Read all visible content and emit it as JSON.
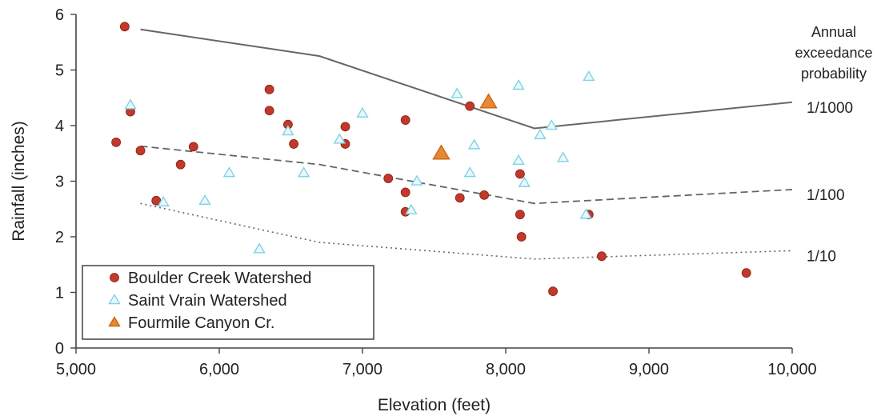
{
  "chart_data": {
    "type": "scatter",
    "title": "",
    "xlabel": "Elevation (feet)",
    "ylabel": "Rainfall (inches)",
    "xlim": [
      5000,
      10000
    ],
    "ylim": [
      0,
      6
    ],
    "x_ticks": [
      5000,
      6000,
      7000,
      8000,
      9000,
      10000
    ],
    "x_tick_labels": [
      "5,000",
      "6,000",
      "7,000",
      "8,000",
      "9,000",
      "10,000"
    ],
    "y_ticks": [
      0,
      1,
      2,
      3,
      4,
      5,
      6
    ],
    "y_tick_labels": [
      "0",
      "1",
      "2",
      "3",
      "4",
      "5",
      "6"
    ],
    "grid": false,
    "legend_placement": "bottom-left",
    "lines_title": [
      "Annual",
      "exceedance",
      "probability"
    ],
    "series": [
      {
        "name": "Boulder Creek Watershed",
        "marker": "circle",
        "color": "#c0392b",
        "points": [
          [
            5340,
            5.78
          ],
          [
            5280,
            3.7
          ],
          [
            5380,
            4.25
          ],
          [
            5450,
            3.55
          ],
          [
            5560,
            2.65
          ],
          [
            5730,
            3.3
          ],
          [
            5820,
            3.62
          ],
          [
            6350,
            4.65
          ],
          [
            6350,
            4.27
          ],
          [
            6480,
            4.02
          ],
          [
            6520,
            3.67
          ],
          [
            6880,
            3.98
          ],
          [
            6880,
            3.67
          ],
          [
            7180,
            3.05
          ],
          [
            7300,
            4.1
          ],
          [
            7300,
            2.8
          ],
          [
            7300,
            2.45
          ],
          [
            7680,
            2.7
          ],
          [
            7750,
            4.35
          ],
          [
            7850,
            2.75
          ],
          [
            8100,
            3.13
          ],
          [
            8100,
            2.4
          ],
          [
            8110,
            2.0
          ],
          [
            8330,
            1.02
          ],
          [
            8580,
            2.4
          ],
          [
            8670,
            1.65
          ],
          [
            9680,
            1.35
          ]
        ]
      },
      {
        "name": "Saint Vrain Watershed",
        "marker": "triangle",
        "color": "#7fd3e6",
        "points": [
          [
            5380,
            4.37
          ],
          [
            5610,
            2.62
          ],
          [
            5900,
            2.65
          ],
          [
            6070,
            3.15
          ],
          [
            6280,
            1.78
          ],
          [
            6480,
            3.9
          ],
          [
            6590,
            3.15
          ],
          [
            6840,
            3.75
          ],
          [
            7000,
            4.22
          ],
          [
            7340,
            2.48
          ],
          [
            7380,
            3.0
          ],
          [
            7660,
            4.57
          ],
          [
            7750,
            3.15
          ],
          [
            7780,
            3.65
          ],
          [
            8090,
            4.72
          ],
          [
            8090,
            3.37
          ],
          [
            8130,
            2.97
          ],
          [
            8240,
            3.83
          ],
          [
            8320,
            4.0
          ],
          [
            8400,
            3.42
          ],
          [
            8560,
            2.4
          ],
          [
            8580,
            4.88
          ]
        ]
      },
      {
        "name": "Fourmile Canyon Cr.",
        "marker": "triangle",
        "color": "#e8892f",
        "points": [
          [
            7550,
            3.5
          ],
          [
            7880,
            4.42
          ]
        ]
      }
    ],
    "lines": [
      {
        "label": "1/1000",
        "style": "solid",
        "points": [
          [
            5450,
            5.73
          ],
          [
            6700,
            5.25
          ],
          [
            8200,
            3.95
          ],
          [
            10000,
            4.42
          ]
        ]
      },
      {
        "label": "1/100",
        "style": "dashed",
        "points": [
          [
            5450,
            3.63
          ],
          [
            6700,
            3.3
          ],
          [
            8200,
            2.6
          ],
          [
            10000,
            2.85
          ]
        ]
      },
      {
        "label": "1/10",
        "style": "dotted",
        "points": [
          [
            5450,
            2.6
          ],
          [
            6700,
            1.9
          ],
          [
            8200,
            1.6
          ],
          [
            10000,
            1.75
          ]
        ]
      }
    ]
  }
}
